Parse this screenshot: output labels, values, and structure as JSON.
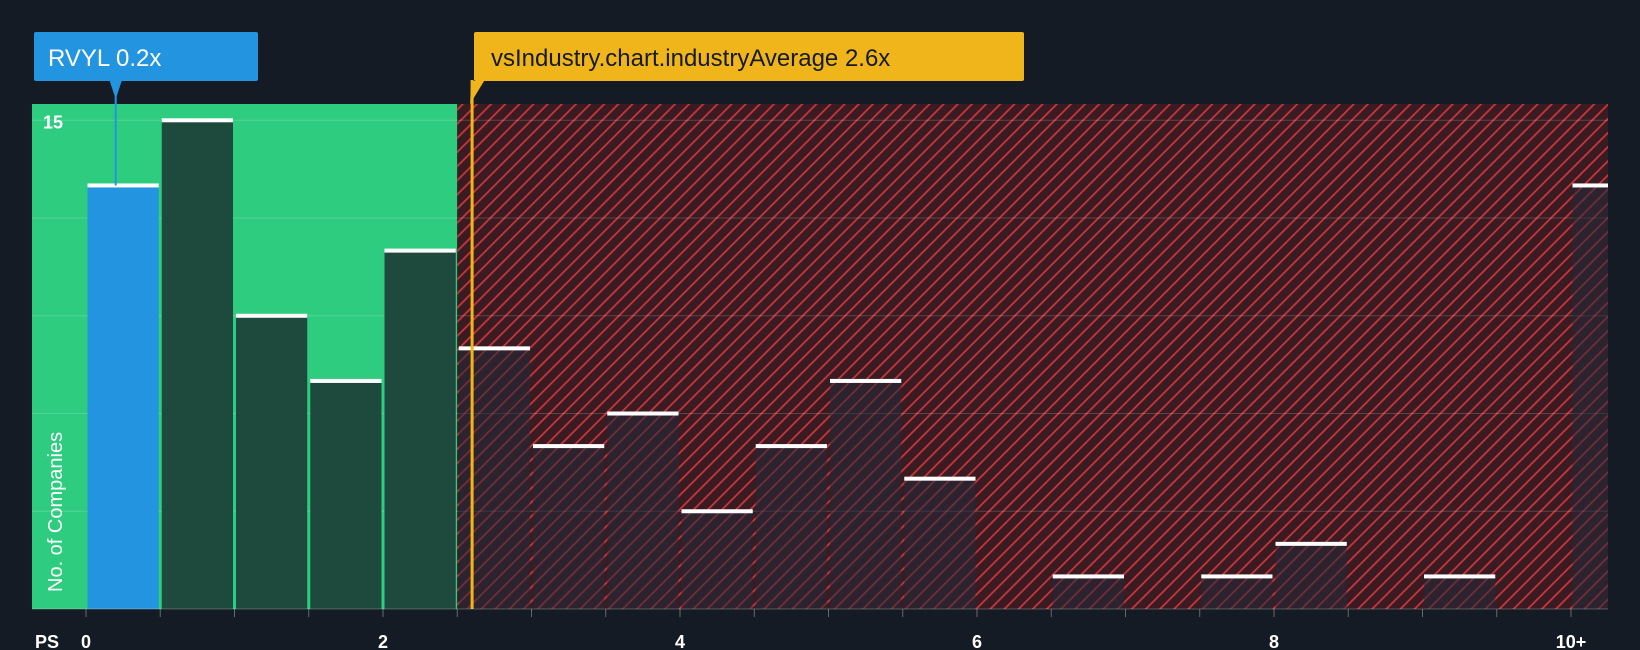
{
  "chart_data": {
    "type": "bar",
    "x_axis_label": "PS",
    "y_axis_label": "No. of Companies",
    "x_ticks": [
      "0",
      "2",
      "4",
      "6",
      "8",
      "10+"
    ],
    "y_ticks": [
      "15"
    ],
    "bin_width": 0.5,
    "bins": [
      {
        "start": 0.0,
        "count": 13
      },
      {
        "start": 0.5,
        "count": 15
      },
      {
        "start": 1.0,
        "count": 9
      },
      {
        "start": 1.5,
        "count": 7
      },
      {
        "start": 2.0,
        "count": 11
      },
      {
        "start": 2.5,
        "count": 8
      },
      {
        "start": 3.0,
        "count": 5
      },
      {
        "start": 3.5,
        "count": 6
      },
      {
        "start": 4.0,
        "count": 3
      },
      {
        "start": 4.5,
        "count": 5
      },
      {
        "start": 5.0,
        "count": 7
      },
      {
        "start": 5.5,
        "count": 4
      },
      {
        "start": 6.0,
        "count": 0
      },
      {
        "start": 6.5,
        "count": 1
      },
      {
        "start": 7.0,
        "count": 0
      },
      {
        "start": 7.5,
        "count": 1
      },
      {
        "start": 8.0,
        "count": 2
      },
      {
        "start": 8.5,
        "count": 0
      },
      {
        "start": 9.0,
        "count": 1
      },
      {
        "start": 9.5,
        "count": 0
      },
      {
        "start": 10.0,
        "count": 13
      }
    ],
    "ylim": [
      0,
      15.5
    ],
    "company": {
      "label": "RVYL 0.2x",
      "value": 0.2
    },
    "industry": {
      "label": "vsIndustry.chart.industryAverage 2.6x",
      "value": 2.6
    },
    "fair_range_max": 2.5,
    "colors": {
      "background": "#151b24",
      "fair_zone": "#2ecc7f",
      "company_bar": "#2394e0",
      "fair_bar": "#1e4a3e",
      "overvalued_zone": "#3a1b22",
      "hatch": "#c9373d",
      "industry": "#f0b51b",
      "cap": "#ffffff"
    }
  }
}
